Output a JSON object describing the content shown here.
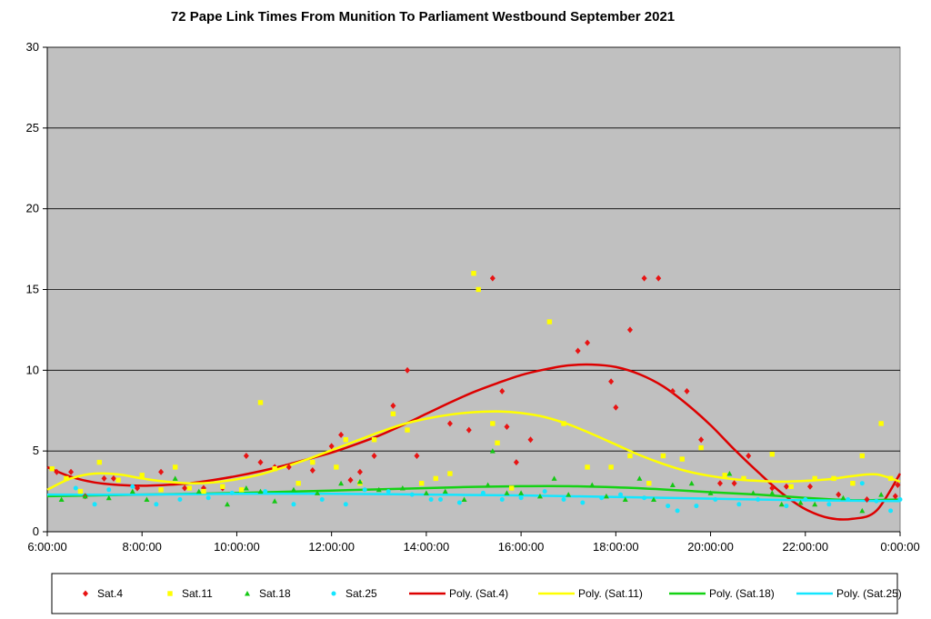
{
  "chart_data": {
    "type": "scatter",
    "title": "72 Pape Link Times From Munition To Parliament Westbound September 2021",
    "xlabel": "",
    "ylabel": "",
    "x_unit": "hours",
    "xlim": [
      6,
      24
    ],
    "ylim": [
      0,
      30
    ],
    "x_ticks": [
      6,
      8,
      10,
      12,
      14,
      16,
      18,
      20,
      22,
      24
    ],
    "x_tick_labels": [
      "6:00:00",
      "8:00:00",
      "10:00:00",
      "12:00:00",
      "14:00:00",
      "16:00:00",
      "18:00:00",
      "20:00:00",
      "22:00:00",
      "0:00:00"
    ],
    "y_ticks": [
      0,
      5,
      10,
      15,
      20,
      25,
      30
    ],
    "y_tick_labels": [
      "0",
      "5",
      "10",
      "15",
      "20",
      "25",
      "30"
    ],
    "grid": "horizontal",
    "plot_background": "#c0c0c0",
    "legend_position": "bottom",
    "series": [
      {
        "name": "Sat.4",
        "color": "#e81313",
        "marker": "diamond",
        "points": [
          [
            6.2,
            3.7
          ],
          [
            6.5,
            3.7
          ],
          [
            6.8,
            2.2
          ],
          [
            7.2,
            3.3
          ],
          [
            7.4,
            3.3
          ],
          [
            7.9,
            2.7
          ],
          [
            8.4,
            3.7
          ],
          [
            8.9,
            2.7
          ],
          [
            9.3,
            2.7
          ],
          [
            9.7,
            2.7
          ],
          [
            10.2,
            4.7
          ],
          [
            10.5,
            4.3
          ],
          [
            10.8,
            4.0
          ],
          [
            11.1,
            4.0
          ],
          [
            11.6,
            3.8
          ],
          [
            12.0,
            5.3
          ],
          [
            12.2,
            6.0
          ],
          [
            12.4,
            3.2
          ],
          [
            12.6,
            3.7
          ],
          [
            12.9,
            4.7
          ],
          [
            13.3,
            7.8
          ],
          [
            13.6,
            10.0
          ],
          [
            13.8,
            4.7
          ],
          [
            14.5,
            6.7
          ],
          [
            14.9,
            6.3
          ],
          [
            15.4,
            15.7
          ],
          [
            15.6,
            8.7
          ],
          [
            15.7,
            6.5
          ],
          [
            15.9,
            4.3
          ],
          [
            16.2,
            5.7
          ],
          [
            17.2,
            11.2
          ],
          [
            17.4,
            11.7
          ],
          [
            17.9,
            9.3
          ],
          [
            18.0,
            7.7
          ],
          [
            18.3,
            12.5
          ],
          [
            18.6,
            15.7
          ],
          [
            18.9,
            15.7
          ],
          [
            19.2,
            8.7
          ],
          [
            19.5,
            8.7
          ],
          [
            19.8,
            5.7
          ],
          [
            20.2,
            3.0
          ],
          [
            20.5,
            3.0
          ],
          [
            20.8,
            4.7
          ],
          [
            21.3,
            2.7
          ],
          [
            21.6,
            2.8
          ],
          [
            22.1,
            2.8
          ],
          [
            22.7,
            2.3
          ],
          [
            23.3,
            2.0
          ],
          [
            23.9,
            2.2
          ],
          [
            23.95,
            2.9
          ]
        ]
      },
      {
        "name": "Sat.11",
        "color": "#ffff00",
        "marker": "square",
        "points": [
          [
            6.1,
            3.9
          ],
          [
            6.4,
            3.3
          ],
          [
            6.7,
            2.5
          ],
          [
            7.1,
            4.3
          ],
          [
            7.5,
            3.2
          ],
          [
            8.0,
            3.5
          ],
          [
            8.4,
            2.6
          ],
          [
            8.7,
            4.0
          ],
          [
            9.0,
            2.7
          ],
          [
            9.3,
            2.5
          ],
          [
            9.7,
            2.8
          ],
          [
            10.1,
            2.6
          ],
          [
            10.5,
            8.0
          ],
          [
            10.8,
            3.9
          ],
          [
            11.3,
            3.0
          ],
          [
            11.6,
            4.3
          ],
          [
            12.1,
            4.0
          ],
          [
            12.3,
            5.7
          ],
          [
            12.6,
            3.0
          ],
          [
            12.9,
            5.7
          ],
          [
            13.3,
            7.3
          ],
          [
            13.6,
            6.3
          ],
          [
            13.9,
            3.0
          ],
          [
            14.2,
            3.3
          ],
          [
            14.5,
            3.6
          ],
          [
            15.0,
            16.0
          ],
          [
            15.1,
            15.0
          ],
          [
            15.4,
            6.7
          ],
          [
            15.5,
            5.5
          ],
          [
            15.8,
            2.7
          ],
          [
            16.6,
            13.0
          ],
          [
            16.9,
            6.7
          ],
          [
            17.4,
            4.0
          ],
          [
            17.9,
            4.0
          ],
          [
            18.3,
            4.7
          ],
          [
            18.7,
            3.0
          ],
          [
            19.0,
            4.7
          ],
          [
            19.4,
            4.5
          ],
          [
            19.8,
            5.2
          ],
          [
            20.3,
            3.5
          ],
          [
            20.7,
            3.3
          ],
          [
            21.3,
            4.8
          ],
          [
            21.7,
            2.8
          ],
          [
            22.2,
            3.3
          ],
          [
            22.6,
            3.3
          ],
          [
            23.0,
            3.0
          ],
          [
            23.2,
            4.7
          ],
          [
            23.6,
            6.7
          ],
          [
            23.8,
            3.3
          ]
        ]
      },
      {
        "name": "Sat.18",
        "color": "#14c814",
        "marker": "triangle",
        "points": [
          [
            6.3,
            2.0
          ],
          [
            6.8,
            2.2
          ],
          [
            7.3,
            2.1
          ],
          [
            7.8,
            2.5
          ],
          [
            8.1,
            2.0
          ],
          [
            8.7,
            3.3
          ],
          [
            9.2,
            2.5
          ],
          [
            9.8,
            1.7
          ],
          [
            10.2,
            2.7
          ],
          [
            10.5,
            2.5
          ],
          [
            10.8,
            1.9
          ],
          [
            11.2,
            2.6
          ],
          [
            11.7,
            2.4
          ],
          [
            12.2,
            3.0
          ],
          [
            12.6,
            3.1
          ],
          [
            13.0,
            2.6
          ],
          [
            13.5,
            2.7
          ],
          [
            14.0,
            2.4
          ],
          [
            14.4,
            2.5
          ],
          [
            14.8,
            2.0
          ],
          [
            15.3,
            2.9
          ],
          [
            15.4,
            5.0
          ],
          [
            15.7,
            2.4
          ],
          [
            16.0,
            2.4
          ],
          [
            16.4,
            2.2
          ],
          [
            16.7,
            3.3
          ],
          [
            17.0,
            2.3
          ],
          [
            17.5,
            2.9
          ],
          [
            17.8,
            2.2
          ],
          [
            18.2,
            2.0
          ],
          [
            18.5,
            3.3
          ],
          [
            18.8,
            2.0
          ],
          [
            19.2,
            2.9
          ],
          [
            19.6,
            3.0
          ],
          [
            20.0,
            2.4
          ],
          [
            20.4,
            3.6
          ],
          [
            20.9,
            2.4
          ],
          [
            21.3,
            2.4
          ],
          [
            21.5,
            1.7
          ],
          [
            21.9,
            1.8
          ],
          [
            22.2,
            1.7
          ],
          [
            22.8,
            2.1
          ],
          [
            23.2,
            1.3
          ],
          [
            23.6,
            2.3
          ]
        ]
      },
      {
        "name": "Sat.25",
        "color": "#14e6ff",
        "marker": "circle",
        "points": [
          [
            6.6,
            2.7
          ],
          [
            7.0,
            1.7
          ],
          [
            7.3,
            2.6
          ],
          [
            7.8,
            2.8
          ],
          [
            8.3,
            1.7
          ],
          [
            8.8,
            2.0
          ],
          [
            9.4,
            2.1
          ],
          [
            9.9,
            2.4
          ],
          [
            10.6,
            2.5
          ],
          [
            11.2,
            1.7
          ],
          [
            11.8,
            2.0
          ],
          [
            12.3,
            1.7
          ],
          [
            12.7,
            2.6
          ],
          [
            13.2,
            2.5
          ],
          [
            13.7,
            2.3
          ],
          [
            14.1,
            2.0
          ],
          [
            14.3,
            2.0
          ],
          [
            14.7,
            1.8
          ],
          [
            15.2,
            2.4
          ],
          [
            15.6,
            2.0
          ],
          [
            16.0,
            2.1
          ],
          [
            16.5,
            2.5
          ],
          [
            16.9,
            2.0
          ],
          [
            17.3,
            1.8
          ],
          [
            17.7,
            2.1
          ],
          [
            18.1,
            2.3
          ],
          [
            18.6,
            2.1
          ],
          [
            19.1,
            1.6
          ],
          [
            19.3,
            1.3
          ],
          [
            19.7,
            1.6
          ],
          [
            20.1,
            2.0
          ],
          [
            20.6,
            1.7
          ],
          [
            21.0,
            2.0
          ],
          [
            21.6,
            1.6
          ],
          [
            22.0,
            2.0
          ],
          [
            22.5,
            1.7
          ],
          [
            22.9,
            2.0
          ],
          [
            23.2,
            3.0
          ],
          [
            23.5,
            1.9
          ],
          [
            23.8,
            1.3
          ],
          [
            24.0,
            2.0
          ]
        ]
      },
      {
        "name": "Poly. (Sat.4)",
        "color": "#dd0000",
        "kind": "line",
        "points": [
          [
            6.0,
            4.0
          ],
          [
            6.5,
            3.4
          ],
          [
            7.0,
            3.05
          ],
          [
            7.5,
            2.9
          ],
          [
            8.0,
            2.85
          ],
          [
            8.5,
            2.9
          ],
          [
            9.0,
            3.0
          ],
          [
            9.5,
            3.2
          ],
          [
            10.0,
            3.45
          ],
          [
            10.5,
            3.75
          ],
          [
            11.0,
            4.1
          ],
          [
            11.5,
            4.5
          ],
          [
            12.0,
            4.9
          ],
          [
            12.5,
            5.4
          ],
          [
            13.0,
            5.95
          ],
          [
            13.5,
            6.6
          ],
          [
            14.0,
            7.3
          ],
          [
            14.5,
            8.0
          ],
          [
            15.0,
            8.65
          ],
          [
            15.5,
            9.2
          ],
          [
            16.0,
            9.7
          ],
          [
            16.5,
            10.05
          ],
          [
            17.0,
            10.3
          ],
          [
            17.5,
            10.35
          ],
          [
            18.0,
            10.2
          ],
          [
            18.5,
            9.75
          ],
          [
            19.0,
            9.0
          ],
          [
            19.5,
            7.9
          ],
          [
            20.0,
            6.6
          ],
          [
            20.5,
            5.1
          ],
          [
            21.0,
            3.7
          ],
          [
            21.5,
            2.4
          ],
          [
            22.0,
            1.4
          ],
          [
            22.5,
            0.85
          ],
          [
            23.0,
            0.8
          ],
          [
            23.5,
            1.3
          ],
          [
            24.0,
            3.6
          ]
        ]
      },
      {
        "name": "Poly. (Sat.11)",
        "color": "#ffff00",
        "kind": "line",
        "points": [
          [
            6.0,
            2.6
          ],
          [
            6.5,
            3.3
          ],
          [
            7.0,
            3.6
          ],
          [
            7.5,
            3.55
          ],
          [
            8.0,
            3.3
          ],
          [
            8.5,
            3.1
          ],
          [
            9.0,
            3.0
          ],
          [
            9.5,
            3.05
          ],
          [
            10.0,
            3.25
          ],
          [
            10.5,
            3.55
          ],
          [
            11.0,
            4.0
          ],
          [
            11.5,
            4.5
          ],
          [
            12.0,
            5.05
          ],
          [
            12.5,
            5.6
          ],
          [
            13.0,
            6.15
          ],
          [
            13.5,
            6.65
          ],
          [
            14.0,
            7.0
          ],
          [
            14.5,
            7.25
          ],
          [
            15.0,
            7.4
          ],
          [
            15.5,
            7.45
          ],
          [
            16.0,
            7.35
          ],
          [
            16.5,
            7.1
          ],
          [
            17.0,
            6.65
          ],
          [
            17.5,
            6.05
          ],
          [
            18.0,
            5.4
          ],
          [
            18.5,
            4.75
          ],
          [
            19.0,
            4.2
          ],
          [
            19.5,
            3.75
          ],
          [
            20.0,
            3.45
          ],
          [
            20.5,
            3.25
          ],
          [
            21.0,
            3.15
          ],
          [
            21.5,
            3.1
          ],
          [
            22.0,
            3.15
          ],
          [
            22.5,
            3.25
          ],
          [
            23.0,
            3.45
          ],
          [
            23.5,
            3.55
          ],
          [
            24.0,
            3.1
          ]
        ]
      },
      {
        "name": "Poly. (Sat.18)",
        "color": "#14d214",
        "kind": "line",
        "points": [
          [
            6.0,
            2.2
          ],
          [
            8.0,
            2.3
          ],
          [
            10.0,
            2.4
          ],
          [
            12.0,
            2.55
          ],
          [
            14.0,
            2.7
          ],
          [
            15.0,
            2.78
          ],
          [
            16.0,
            2.82
          ],
          [
            17.0,
            2.82
          ],
          [
            18.0,
            2.75
          ],
          [
            19.0,
            2.62
          ],
          [
            20.0,
            2.45
          ],
          [
            21.0,
            2.3
          ],
          [
            22.0,
            2.1
          ],
          [
            23.0,
            1.95
          ],
          [
            24.0,
            2.0
          ]
        ]
      },
      {
        "name": "Poly. (Sat.25)",
        "color": "#14e6ff",
        "kind": "line",
        "points": [
          [
            6.0,
            2.3
          ],
          [
            8.0,
            2.3
          ],
          [
            10.0,
            2.35
          ],
          [
            12.0,
            2.35
          ],
          [
            14.0,
            2.3
          ],
          [
            16.0,
            2.25
          ],
          [
            18.0,
            2.15
          ],
          [
            20.0,
            2.05
          ],
          [
            22.0,
            1.95
          ],
          [
            24.0,
            1.9
          ]
        ]
      }
    ]
  }
}
